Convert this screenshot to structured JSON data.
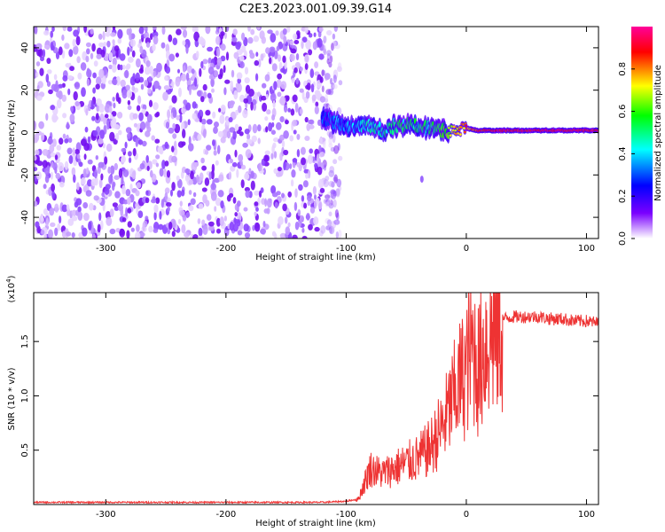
{
  "title": "C2E3.2023.001.09.39.G14",
  "chart_data": [
    {
      "type": "heatmap",
      "title": "C2E3.2023.001.09.39.G14",
      "xlabel": "Height of straight line (km)",
      "ylabel": "Frequency (Hz)",
      "xlim": [
        -360,
        110
      ],
      "ylim": [
        -50,
        50
      ],
      "xticks": [
        -300,
        -200,
        -100,
        0,
        100
      ],
      "yticks": [
        -40,
        -20,
        0,
        20,
        40
      ],
      "noise_region_km": [
        -360,
        -112
      ],
      "ridge": {
        "x_km": [
          -120,
          -110,
          -100,
          -90,
          -80,
          -70,
          -60,
          -50,
          -40,
          -30,
          -20,
          -10,
          0,
          10,
          20,
          40,
          60,
          80,
          100,
          110
        ],
        "freq_hz": [
          7,
          5,
          3,
          2,
          3,
          1,
          3,
          4,
          3,
          2,
          1,
          1,
          2,
          1,
          1,
          1,
          1,
          1,
          1,
          1
        ],
        "amplitude": [
          0.3,
          0.35,
          0.35,
          0.4,
          0.45,
          0.45,
          0.5,
          0.5,
          0.5,
          0.5,
          0.6,
          0.7,
          0.8,
          0.85,
          0.9,
          0.9,
          0.9,
          0.9,
          0.9,
          0.9
        ]
      },
      "colorbar": {
        "label": "Normalized spectral amplitude",
        "range": [
          0,
          1
        ],
        "ticks": [
          "0.0",
          "0.2",
          "0.4",
          "0.6",
          "0.8"
        ],
        "colors": [
          "#ffffff",
          "#7a00ff",
          "#0000ff",
          "#00ffff",
          "#00ff00",
          "#ffff00",
          "#ff0000",
          "#ff0099"
        ]
      }
    },
    {
      "type": "line",
      "xlabel": "Height of straight line (km)",
      "ylabel": "SNR (10 * v/v)",
      "exponent_label": "(x10",
      "exponent_sup": "4",
      "exponent_close": ")",
      "xlim": [
        -360,
        110
      ],
      "ylim": [
        0,
        1.95
      ],
      "xticks": [
        -300,
        -200,
        -100,
        0,
        100
      ],
      "yticks": [
        "0.5",
        "1.0",
        "1.5"
      ],
      "series": [
        {
          "name": "SNR",
          "color": "#ee3333",
          "x": [
            -360,
            -300,
            -200,
            -120,
            -100,
            -90,
            -85,
            -80,
            -70,
            -60,
            -50,
            -40,
            -30,
            -20,
            -15,
            -10,
            -5,
            0,
            2,
            5,
            8,
            10,
            15,
            20,
            30,
            40,
            50,
            60,
            70,
            80,
            90,
            100,
            110
          ],
          "y": [
            0.02,
            0.02,
            0.02,
            0.02,
            0.03,
            0.05,
            0.2,
            0.35,
            0.3,
            0.35,
            0.4,
            0.45,
            0.55,
            0.75,
            0.9,
            1.05,
            1.2,
            1.3,
            1.45,
            1.5,
            1.45,
            1.3,
            1.55,
            1.65,
            1.72,
            1.74,
            1.74,
            1.74,
            1.72,
            1.72,
            1.7,
            1.7,
            1.68
          ]
        }
      ]
    }
  ]
}
